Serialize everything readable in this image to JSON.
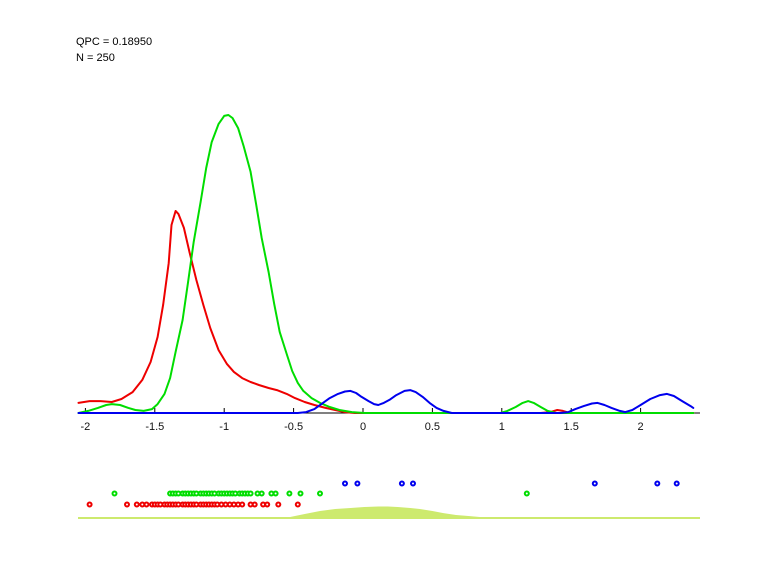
{
  "annotations": {
    "qpc_label": "QPC = 0.18950",
    "n_label": "N = 250"
  },
  "colors": {
    "red": "#ee0000",
    "green": "#00dd00",
    "blue": "#0000ee",
    "projection_fill": "#cdea6e",
    "axis": "#000000",
    "text": "#000000",
    "background": "#ffffff"
  },
  "chart_data": {
    "type": "line",
    "title": "",
    "xlabel": "",
    "ylabel": "",
    "xlim": [
      -2.05,
      2.43
    ],
    "ylim": [
      0,
      1.05
    ],
    "grid": false,
    "legend": "none",
    "y_axis_hidden": true,
    "x_ticks": [
      -2,
      -1.5,
      -1,
      -0.5,
      0,
      0.5,
      1,
      1.5,
      2
    ],
    "x_tick_labels": [
      "-2",
      "-1.5",
      "-1",
      "-0.5",
      "0",
      "0.5",
      "1",
      "1.5",
      "2"
    ],
    "series": [
      {
        "name": "red-class-density",
        "color_key": "red",
        "points": [
          [
            -2.05,
            0.034
          ],
          [
            -1.97,
            0.04
          ],
          [
            -1.89,
            0.04
          ],
          [
            -1.81,
            0.037
          ],
          [
            -1.74,
            0.047
          ],
          [
            -1.66,
            0.07
          ],
          [
            -1.59,
            0.111
          ],
          [
            -1.53,
            0.171
          ],
          [
            -1.48,
            0.255
          ],
          [
            -1.44,
            0.362
          ],
          [
            -1.4,
            0.503
          ],
          [
            -1.38,
            0.631
          ],
          [
            -1.35,
            0.678
          ],
          [
            -1.33,
            0.668
          ],
          [
            -1.29,
            0.621
          ],
          [
            -1.25,
            0.54
          ],
          [
            -1.2,
            0.446
          ],
          [
            -1.15,
            0.362
          ],
          [
            -1.1,
            0.285
          ],
          [
            -1.04,
            0.211
          ],
          [
            -0.98,
            0.164
          ],
          [
            -0.93,
            0.138
          ],
          [
            -0.87,
            0.117
          ],
          [
            -0.81,
            0.104
          ],
          [
            -0.75,
            0.094
          ],
          [
            -0.68,
            0.084
          ],
          [
            -0.62,
            0.077
          ],
          [
            -0.55,
            0.064
          ],
          [
            -0.49,
            0.05
          ],
          [
            -0.42,
            0.037
          ],
          [
            -0.35,
            0.027
          ],
          [
            -0.27,
            0.017
          ],
          [
            -0.2,
            0.01
          ],
          [
            -0.13,
            0.003
          ],
          [
            -0.06,
            0.0
          ],
          [
            1.28,
            0.0
          ],
          [
            1.35,
            0.003
          ],
          [
            1.4,
            0.01
          ],
          [
            1.44,
            0.007
          ],
          [
            1.49,
            0.0
          ],
          [
            2.38,
            0.0
          ]
        ]
      },
      {
        "name": "green-class-density",
        "color_key": "green",
        "points": [
          [
            -2.05,
            0.0
          ],
          [
            -1.98,
            0.007
          ],
          [
            -1.91,
            0.017
          ],
          [
            -1.85,
            0.027
          ],
          [
            -1.81,
            0.03
          ],
          [
            -1.75,
            0.027
          ],
          [
            -1.69,
            0.017
          ],
          [
            -1.64,
            0.01
          ],
          [
            -1.58,
            0.007
          ],
          [
            -1.52,
            0.013
          ],
          [
            -1.48,
            0.03
          ],
          [
            -1.43,
            0.064
          ],
          [
            -1.39,
            0.117
          ],
          [
            -1.35,
            0.205
          ],
          [
            -1.3,
            0.312
          ],
          [
            -1.26,
            0.44
          ],
          [
            -1.22,
            0.574
          ],
          [
            -1.17,
            0.708
          ],
          [
            -1.13,
            0.822
          ],
          [
            -1.09,
            0.909
          ],
          [
            -1.04,
            0.97
          ],
          [
            -1.0,
            0.997
          ],
          [
            -0.97,
            1.0
          ],
          [
            -0.94,
            0.99
          ],
          [
            -0.9,
            0.956
          ],
          [
            -0.86,
            0.896
          ],
          [
            -0.81,
            0.809
          ],
          [
            -0.77,
            0.701
          ],
          [
            -0.73,
            0.587
          ],
          [
            -0.68,
            0.473
          ],
          [
            -0.64,
            0.366
          ],
          [
            -0.6,
            0.272
          ],
          [
            -0.55,
            0.198
          ],
          [
            -0.51,
            0.141
          ],
          [
            -0.47,
            0.101
          ],
          [
            -0.43,
            0.074
          ],
          [
            -0.37,
            0.05
          ],
          [
            -0.31,
            0.034
          ],
          [
            -0.24,
            0.02
          ],
          [
            -0.17,
            0.01
          ],
          [
            -0.08,
            0.003
          ],
          [
            0.01,
            0.0
          ],
          [
            0.99,
            0.0
          ],
          [
            1.04,
            0.007
          ],
          [
            1.1,
            0.02
          ],
          [
            1.15,
            0.034
          ],
          [
            1.19,
            0.04
          ],
          [
            1.23,
            0.034
          ],
          [
            1.28,
            0.02
          ],
          [
            1.33,
            0.007
          ],
          [
            1.39,
            0.0
          ],
          [
            2.38,
            0.0
          ]
        ]
      },
      {
        "name": "blue-class-density",
        "color_key": "blue",
        "points": [
          [
            -2.05,
            0.0
          ],
          [
            -0.47,
            0.0
          ],
          [
            -0.41,
            0.003
          ],
          [
            -0.35,
            0.013
          ],
          [
            -0.3,
            0.03
          ],
          [
            -0.24,
            0.05
          ],
          [
            -0.18,
            0.064
          ],
          [
            -0.13,
            0.072
          ],
          [
            -0.09,
            0.074
          ],
          [
            -0.05,
            0.067
          ],
          [
            -0.01,
            0.054
          ],
          [
            0.04,
            0.04
          ],
          [
            0.08,
            0.03
          ],
          [
            0.11,
            0.027
          ],
          [
            0.15,
            0.034
          ],
          [
            0.19,
            0.044
          ],
          [
            0.24,
            0.06
          ],
          [
            0.3,
            0.074
          ],
          [
            0.34,
            0.077
          ],
          [
            0.38,
            0.07
          ],
          [
            0.43,
            0.054
          ],
          [
            0.48,
            0.034
          ],
          [
            0.53,
            0.017
          ],
          [
            0.58,
            0.007
          ],
          [
            0.64,
            0.0
          ],
          [
            1.42,
            0.0
          ],
          [
            1.48,
            0.003
          ],
          [
            1.53,
            0.013
          ],
          [
            1.59,
            0.023
          ],
          [
            1.65,
            0.032
          ],
          [
            1.69,
            0.034
          ],
          [
            1.74,
            0.027
          ],
          [
            1.79,
            0.017
          ],
          [
            1.85,
            0.007
          ],
          [
            1.89,
            0.003
          ],
          [
            1.94,
            0.01
          ],
          [
            2.0,
            0.027
          ],
          [
            2.07,
            0.047
          ],
          [
            2.14,
            0.06
          ],
          [
            2.19,
            0.064
          ],
          [
            2.24,
            0.057
          ],
          [
            2.3,
            0.04
          ],
          [
            2.36,
            0.023
          ],
          [
            2.38,
            0.017
          ]
        ]
      }
    ],
    "scatter_rows": {
      "blue": [
        -0.13,
        -0.04,
        0.28,
        0.36,
        1.67,
        2.12,
        2.26
      ],
      "green": [
        -1.79,
        -1.39,
        -1.37,
        -1.35,
        -1.33,
        -1.3,
        -1.28,
        -1.26,
        -1.24,
        -1.22,
        -1.2,
        -1.17,
        -1.15,
        -1.13,
        -1.11,
        -1.09,
        -1.07,
        -1.04,
        -1.02,
        -1.0,
        -0.98,
        -0.96,
        -0.94,
        -0.92,
        -0.89,
        -0.87,
        -0.85,
        -0.83,
        -0.81,
        -0.76,
        -0.73,
        -0.66,
        -0.63,
        -0.53,
        -0.45,
        -0.31,
        1.18
      ],
      "red": [
        -1.97,
        -1.7,
        -1.63,
        -1.59,
        -1.56,
        -1.52,
        -1.5,
        -1.48,
        -1.46,
        -1.43,
        -1.41,
        -1.39,
        -1.37,
        -1.35,
        -1.33,
        -1.3,
        -1.28,
        -1.26,
        -1.24,
        -1.22,
        -1.2,
        -1.17,
        -1.15,
        -1.13,
        -1.11,
        -1.09,
        -1.07,
        -1.05,
        -1.02,
        -0.99,
        -0.96,
        -0.93,
        -0.9,
        -0.87,
        -0.81,
        -0.78,
        -0.72,
        -0.69,
        -0.61,
        -0.47
      ]
    },
    "projection_density": {
      "name": "projected-mixture-density",
      "color_key": "projection_fill",
      "points": [
        [
          -0.56,
          0.0
        ],
        [
          -0.49,
          0.17
        ],
        [
          -0.42,
          0.35
        ],
        [
          -0.31,
          0.61
        ],
        [
          -0.2,
          0.78
        ],
        [
          -0.09,
          0.87
        ],
        [
          0.01,
          0.96
        ],
        [
          0.11,
          1.0
        ],
        [
          0.18,
          1.0
        ],
        [
          0.25,
          0.96
        ],
        [
          0.34,
          0.87
        ],
        [
          0.41,
          0.78
        ],
        [
          0.5,
          0.61
        ],
        [
          0.58,
          0.43
        ],
        [
          0.67,
          0.26
        ],
        [
          0.76,
          0.17
        ],
        [
          0.84,
          0.09
        ],
        [
          0.95,
          0.04
        ],
        [
          1.13,
          0.0
        ]
      ]
    }
  }
}
